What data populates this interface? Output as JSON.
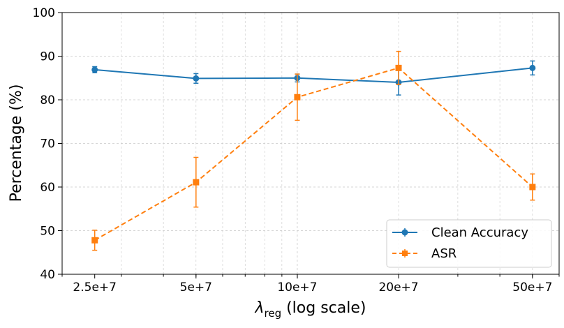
{
  "chart_data": {
    "type": "line",
    "x_scale": "log",
    "x": [
      25000000,
      50000000,
      100000000,
      200000000,
      500000000
    ],
    "x_tick_labels": [
      "2.5e+7",
      "5e+7",
      "10e+7",
      "20e+7",
      "50e+7"
    ],
    "ylabel": "Percentage (%)",
    "xlabel_symbol": "λ",
    "xlabel_subscript": "reg",
    "xlabel_suffix": " (log scale)",
    "xlim": [
      20000000,
      600000000
    ],
    "ylim": [
      40,
      100
    ],
    "y_ticks": [
      40,
      50,
      60,
      70,
      80,
      90,
      100
    ],
    "grid": true,
    "legend_position": "lower-right",
    "series": [
      {
        "name": "Clean Accuracy",
        "color": "#1f77b4",
        "line_style": "solid",
        "marker": "circle",
        "values": [
          86.9,
          84.9,
          85.0,
          84.0,
          87.3
        ],
        "errors": [
          0.7,
          1.1,
          0.9,
          2.9,
          1.6
        ]
      },
      {
        "name": "ASR",
        "color": "#ff7f0e",
        "line_style": "dashed",
        "marker": "square",
        "values": [
          47.8,
          61.1,
          80.6,
          87.3,
          60.0
        ],
        "errors": [
          2.3,
          5.7,
          5.3,
          3.8,
          3.0
        ]
      }
    ]
  }
}
